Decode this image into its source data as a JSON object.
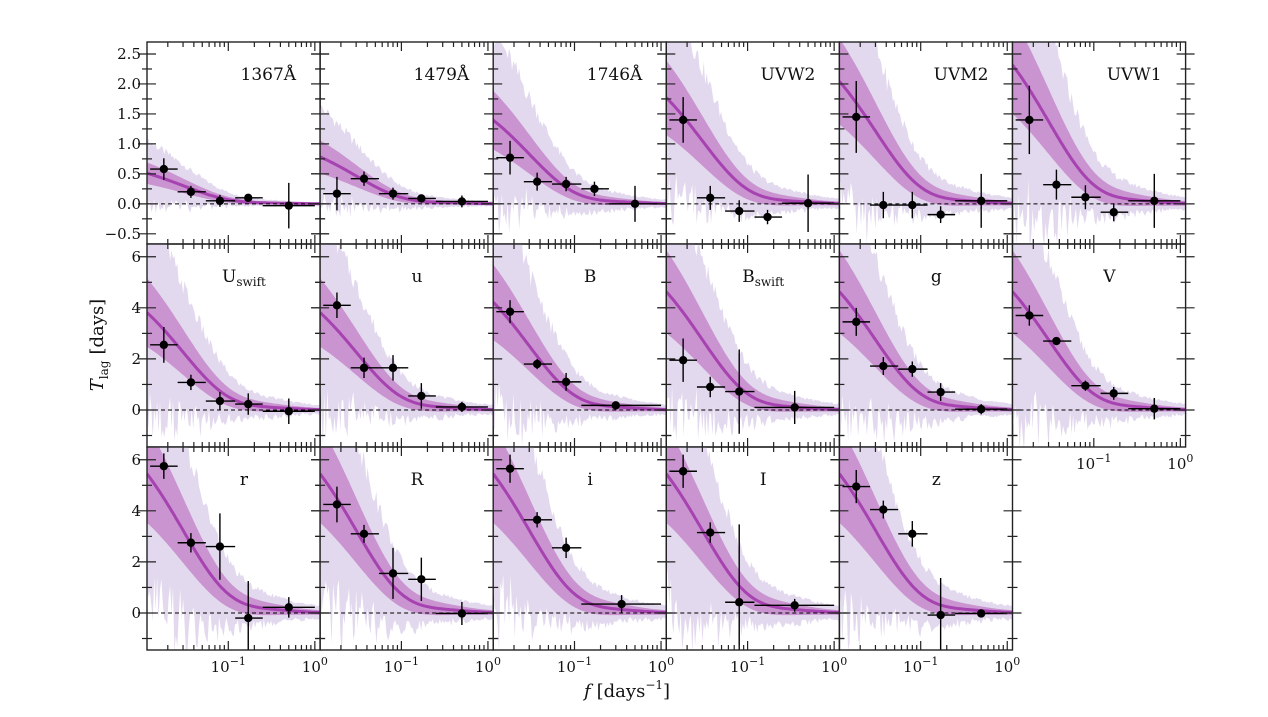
{
  "chart_data": {
    "type": "line",
    "title": "",
    "xlabel": "f [days^-1]",
    "xlabel_parts": {
      "symbol": "f",
      "unit": "[days",
      "exp": "−1",
      "close": "]"
    },
    "ylabel": "T_lag [days]",
    "ylabel_parts": {
      "symbol": "T",
      "sub": "lag",
      "unit": "[days]"
    },
    "xscale": "log",
    "xlim": [
      0.0115,
      1.15
    ],
    "x_tick_labels": [
      {
        "value": 0.1,
        "base": "10",
        "exp": "−1"
      },
      {
        "value": 1,
        "base": "10",
        "exp": "0"
      }
    ],
    "grid": false,
    "layout": {
      "rows": 3,
      "cols": 6
    },
    "colors": {
      "band_2sigma": "#e3d9ee",
      "band_1sigma": "#c994d0",
      "model_line": "#a742b1",
      "points": "#000000",
      "zero_line": "#000000"
    },
    "rows": [
      {
        "ylim": [
          -0.67,
          2.7
        ],
        "yticks": [
          -0.5,
          0.0,
          0.5,
          1.0,
          1.5,
          2.0,
          2.5
        ],
        "ytick_labels": [
          "−0.5",
          "0.0",
          "0.5",
          "1.0",
          "1.5",
          "2.0",
          "2.5"
        ],
        "minor_step": 0.25
      },
      {
        "ylim": [
          -1.45,
          6.5
        ],
        "yticks": [
          0,
          2,
          4,
          6
        ],
        "ytick_labels": [
          "0",
          "2",
          "4",
          "6"
        ],
        "minor_step": 1
      },
      {
        "ylim": [
          -1.45,
          6.5
        ],
        "yticks": [
          0,
          2,
          4,
          6
        ],
        "ytick_labels": [
          "0",
          "2",
          "4",
          "6"
        ],
        "minor_step": 1
      }
    ],
    "panels": [
      {
        "row": 0,
        "col": 0,
        "label": "1367Å",
        "sub": "",
        "model_amp": 0.75,
        "points": [
          {
            "f": 0.018,
            "flo": 0.0125,
            "fhi": 0.026,
            "lag": 0.58,
            "err": 0.18
          },
          {
            "f": 0.037,
            "flo": 0.026,
            "fhi": 0.055,
            "lag": 0.2,
            "err": 0.1
          },
          {
            "f": 0.08,
            "flo": 0.055,
            "fhi": 0.12,
            "lag": 0.05,
            "err": 0.1
          },
          {
            "f": 0.17,
            "flo": 0.12,
            "fhi": 0.25,
            "lag": 0.1,
            "err": 0.06
          },
          {
            "f": 0.5,
            "flo": 0.25,
            "fhi": 1.0,
            "lag": -0.03,
            "err": 0.38
          }
        ]
      },
      {
        "row": 0,
        "col": 1,
        "label": "1479Å",
        "sub": "",
        "model_amp": 1.15,
        "points": [
          {
            "f": 0.018,
            "flo": 0.0125,
            "fhi": 0.026,
            "lag": 0.17,
            "err": 0.28
          },
          {
            "f": 0.037,
            "flo": 0.026,
            "fhi": 0.055,
            "lag": 0.42,
            "err": 0.12
          },
          {
            "f": 0.08,
            "flo": 0.055,
            "fhi": 0.12,
            "lag": 0.17,
            "err": 0.1
          },
          {
            "f": 0.17,
            "flo": 0.12,
            "fhi": 0.25,
            "lag": 0.09,
            "err": 0.06
          },
          {
            "f": 0.5,
            "flo": 0.25,
            "fhi": 1.0,
            "lag": 0.04,
            "err": 0.1
          }
        ]
      },
      {
        "row": 0,
        "col": 2,
        "label": "1746Å",
        "sub": "",
        "model_amp": 2.05,
        "points": [
          {
            "f": 0.018,
            "flo": 0.0125,
            "fhi": 0.026,
            "lag": 0.77,
            "err": 0.28
          },
          {
            "f": 0.037,
            "flo": 0.026,
            "fhi": 0.055,
            "lag": 0.37,
            "err": 0.15
          },
          {
            "f": 0.08,
            "flo": 0.055,
            "fhi": 0.12,
            "lag": 0.33,
            "err": 0.12
          },
          {
            "f": 0.17,
            "flo": 0.12,
            "fhi": 0.25,
            "lag": 0.25,
            "err": 0.12
          },
          {
            "f": 0.5,
            "flo": 0.25,
            "fhi": 1.0,
            "lag": 0.0,
            "err": 0.3
          }
        ]
      },
      {
        "row": 0,
        "col": 3,
        "label": "UVW2",
        "sub": "",
        "model_amp": 2.6,
        "points": [
          {
            "f": 0.018,
            "flo": 0.0125,
            "fhi": 0.026,
            "lag": 1.4,
            "err": 0.38
          },
          {
            "f": 0.037,
            "flo": 0.026,
            "fhi": 0.055,
            "lag": 0.1,
            "err": 0.2
          },
          {
            "f": 0.08,
            "flo": 0.055,
            "fhi": 0.12,
            "lag": -0.12,
            "err": 0.18
          },
          {
            "f": 0.17,
            "flo": 0.12,
            "fhi": 0.25,
            "lag": -0.22,
            "err": 0.12
          },
          {
            "f": 0.5,
            "flo": 0.25,
            "fhi": 1.0,
            "lag": 0.01,
            "err": 0.48
          }
        ]
      },
      {
        "row": 0,
        "col": 4,
        "label": "UVM2",
        "sub": "",
        "model_amp": 3.0,
        "points": [
          {
            "f": 0.018,
            "flo": 0.0125,
            "fhi": 0.026,
            "lag": 1.45,
            "err": 0.6
          },
          {
            "f": 0.037,
            "flo": 0.026,
            "fhi": 0.055,
            "lag": -0.02,
            "err": 0.22
          },
          {
            "f": 0.08,
            "flo": 0.055,
            "fhi": 0.12,
            "lag": -0.02,
            "err": 0.22
          },
          {
            "f": 0.17,
            "flo": 0.12,
            "fhi": 0.25,
            "lag": -0.18,
            "err": 0.14
          },
          {
            "f": 0.5,
            "flo": 0.25,
            "fhi": 1.0,
            "lag": 0.05,
            "err": 0.45
          }
        ]
      },
      {
        "row": 0,
        "col": 5,
        "label": "UVW1",
        "sub": "",
        "model_amp": 3.4,
        "points": [
          {
            "f": 0.018,
            "flo": 0.0125,
            "fhi": 0.026,
            "lag": 1.4,
            "err": 0.57
          },
          {
            "f": 0.037,
            "flo": 0.026,
            "fhi": 0.055,
            "lag": 0.32,
            "err": 0.25
          },
          {
            "f": 0.08,
            "flo": 0.055,
            "fhi": 0.12,
            "lag": 0.11,
            "err": 0.2
          },
          {
            "f": 0.17,
            "flo": 0.12,
            "fhi": 0.25,
            "lag": -0.14,
            "err": 0.15
          },
          {
            "f": 0.5,
            "flo": 0.25,
            "fhi": 1.0,
            "lag": 0.05,
            "err": 0.45
          }
        ]
      },
      {
        "row": 1,
        "col": 0,
        "label": "U",
        "sub": "swift",
        "model_amp": 5.6,
        "points": [
          {
            "f": 0.018,
            "flo": 0.0125,
            "fhi": 0.026,
            "lag": 2.55,
            "err": 0.7
          },
          {
            "f": 0.037,
            "flo": 0.026,
            "fhi": 0.055,
            "lag": 1.08,
            "err": 0.3
          },
          {
            "f": 0.08,
            "flo": 0.055,
            "fhi": 0.12,
            "lag": 0.35,
            "err": 0.35
          },
          {
            "f": 0.17,
            "flo": 0.12,
            "fhi": 0.25,
            "lag": 0.23,
            "err": 0.42
          },
          {
            "f": 0.5,
            "flo": 0.25,
            "fhi": 1.0,
            "lag": -0.05,
            "err": 0.5
          }
        ]
      },
      {
        "row": 1,
        "col": 1,
        "label": "u",
        "sub": "",
        "model_amp": 5.6,
        "points": [
          {
            "f": 0.018,
            "flo": 0.0125,
            "fhi": 0.026,
            "lag": 4.1,
            "err": 0.5
          },
          {
            "f": 0.037,
            "flo": 0.026,
            "fhi": 0.055,
            "lag": 1.65,
            "err": 0.4
          },
          {
            "f": 0.08,
            "flo": 0.055,
            "fhi": 0.12,
            "lag": 1.65,
            "err": 0.5
          },
          {
            "f": 0.17,
            "flo": 0.12,
            "fhi": 0.25,
            "lag": 0.55,
            "err": 0.5
          },
          {
            "f": 0.5,
            "flo": 0.25,
            "fhi": 1.0,
            "lag": 0.12,
            "err": 0.2
          }
        ]
      },
      {
        "row": 1,
        "col": 2,
        "label": "B",
        "sub": "",
        "model_amp": 6.2,
        "points": [
          {
            "f": 0.018,
            "flo": 0.0125,
            "fhi": 0.026,
            "lag": 3.85,
            "err": 0.45
          },
          {
            "f": 0.037,
            "flo": 0.026,
            "fhi": 0.055,
            "lag": 1.8,
            "err": 0.2
          },
          {
            "f": 0.08,
            "flo": 0.055,
            "fhi": 0.12,
            "lag": 1.1,
            "err": 0.35
          },
          {
            "f": 0.3,
            "flo": 0.12,
            "fhi": 1.0,
            "lag": 0.18,
            "err": 0.12
          }
        ]
      },
      {
        "row": 1,
        "col": 3,
        "label": "B",
        "sub": "swift",
        "model_amp": 6.8,
        "points": [
          {
            "f": 0.018,
            "flo": 0.0125,
            "fhi": 0.026,
            "lag": 1.95,
            "err": 0.85
          },
          {
            "f": 0.037,
            "flo": 0.026,
            "fhi": 0.055,
            "lag": 0.9,
            "err": 0.4
          },
          {
            "f": 0.08,
            "flo": 0.055,
            "fhi": 0.12,
            "lag": 0.72,
            "err": 1.65
          },
          {
            "f": 0.35,
            "flo": 0.12,
            "fhi": 1.0,
            "lag": 0.1,
            "err": 0.65
          }
        ]
      },
      {
        "row": 1,
        "col": 4,
        "label": "g",
        "sub": "",
        "model_amp": 6.8,
        "points": [
          {
            "f": 0.018,
            "flo": 0.0125,
            "fhi": 0.026,
            "lag": 3.45,
            "err": 0.55
          },
          {
            "f": 0.037,
            "flo": 0.026,
            "fhi": 0.055,
            "lag": 1.72,
            "err": 0.35
          },
          {
            "f": 0.08,
            "flo": 0.055,
            "fhi": 0.12,
            "lag": 1.6,
            "err": 0.3
          },
          {
            "f": 0.17,
            "flo": 0.12,
            "fhi": 0.25,
            "lag": 0.7,
            "err": 0.35
          },
          {
            "f": 0.5,
            "flo": 0.25,
            "fhi": 1.0,
            "lag": 0.03,
            "err": 0.2
          }
        ]
      },
      {
        "row": 1,
        "col": 5,
        "label": "V",
        "sub": "",
        "model_amp": 6.8,
        "points": [
          {
            "f": 0.018,
            "flo": 0.0125,
            "fhi": 0.026,
            "lag": 3.7,
            "err": 0.4
          },
          {
            "f": 0.037,
            "flo": 0.026,
            "fhi": 0.055,
            "lag": 2.7,
            "err": 0.15
          },
          {
            "f": 0.08,
            "flo": 0.055,
            "fhi": 0.12,
            "lag": 0.95,
            "err": 0.2
          },
          {
            "f": 0.17,
            "flo": 0.12,
            "fhi": 0.25,
            "lag": 0.65,
            "err": 0.25
          },
          {
            "f": 0.5,
            "flo": 0.25,
            "fhi": 1.0,
            "lag": 0.05,
            "err": 0.42
          }
        ]
      },
      {
        "row": 2,
        "col": 0,
        "label": "r",
        "sub": "",
        "model_amp": 8.0,
        "points": [
          {
            "f": 0.018,
            "flo": 0.0125,
            "fhi": 0.026,
            "lag": 5.75,
            "err": 0.5
          },
          {
            "f": 0.037,
            "flo": 0.026,
            "fhi": 0.055,
            "lag": 2.75,
            "err": 0.38
          },
          {
            "f": 0.08,
            "flo": 0.055,
            "fhi": 0.12,
            "lag": 2.6,
            "err": 1.3
          },
          {
            "f": 0.17,
            "flo": 0.12,
            "fhi": 0.25,
            "lag": -0.2,
            "err": 1.45
          },
          {
            "f": 0.5,
            "flo": 0.25,
            "fhi": 1.0,
            "lag": 0.22,
            "err": 0.4
          }
        ]
      },
      {
        "row": 2,
        "col": 1,
        "label": "R",
        "sub": "",
        "model_amp": 8.0,
        "points": [
          {
            "f": 0.018,
            "flo": 0.0125,
            "fhi": 0.026,
            "lag": 4.25,
            "err": 0.7
          },
          {
            "f": 0.037,
            "flo": 0.026,
            "fhi": 0.055,
            "lag": 3.1,
            "err": 0.35
          },
          {
            "f": 0.08,
            "flo": 0.055,
            "fhi": 0.12,
            "lag": 1.55,
            "err": 1.0
          },
          {
            "f": 0.17,
            "flo": 0.12,
            "fhi": 0.25,
            "lag": 1.32,
            "err": 0.85
          },
          {
            "f": 0.5,
            "flo": 0.25,
            "fhi": 1.0,
            "lag": -0.02,
            "err": 0.45
          }
        ]
      },
      {
        "row": 2,
        "col": 2,
        "label": "i",
        "sub": "",
        "model_amp": 8.0,
        "points": [
          {
            "f": 0.018,
            "flo": 0.0125,
            "fhi": 0.026,
            "lag": 5.65,
            "err": 0.55
          },
          {
            "f": 0.037,
            "flo": 0.026,
            "fhi": 0.055,
            "lag": 3.65,
            "err": 0.3
          },
          {
            "f": 0.08,
            "flo": 0.055,
            "fhi": 0.12,
            "lag": 2.55,
            "err": 0.4
          },
          {
            "f": 0.35,
            "flo": 0.12,
            "fhi": 1.0,
            "lag": 0.35,
            "err": 0.35
          }
        ]
      },
      {
        "row": 2,
        "col": 3,
        "label": "I",
        "sub": "",
        "model_amp": 8.0,
        "points": [
          {
            "f": 0.018,
            "flo": 0.0125,
            "fhi": 0.026,
            "lag": 5.55,
            "err": 0.65
          },
          {
            "f": 0.037,
            "flo": 0.026,
            "fhi": 0.055,
            "lag": 3.15,
            "err": 0.4
          },
          {
            "f": 0.08,
            "flo": 0.055,
            "fhi": 0.12,
            "lag": 0.42,
            "err": 3.05
          },
          {
            "f": 0.35,
            "flo": 0.12,
            "fhi": 1.0,
            "lag": 0.3,
            "err": 0.25
          }
        ]
      },
      {
        "row": 2,
        "col": 4,
        "label": "z",
        "sub": "",
        "model_amp": 8.0,
        "points": [
          {
            "f": 0.018,
            "flo": 0.0125,
            "fhi": 0.026,
            "lag": 4.95,
            "err": 0.65
          },
          {
            "f": 0.037,
            "flo": 0.026,
            "fhi": 0.055,
            "lag": 4.05,
            "err": 0.35
          },
          {
            "f": 0.08,
            "flo": 0.055,
            "fhi": 0.12,
            "lag": 3.1,
            "err": 0.5
          },
          {
            "f": 0.17,
            "flo": 0.12,
            "fhi": 0.25,
            "lag": -0.08,
            "err": 1.45
          },
          {
            "f": 0.5,
            "flo": 0.25,
            "fhi": 1.0,
            "lag": -0.02,
            "err": 0.1
          }
        ]
      }
    ]
  }
}
